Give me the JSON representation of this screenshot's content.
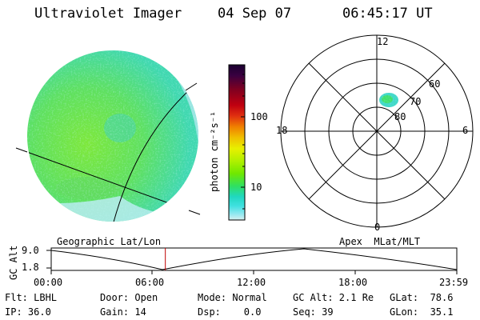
{
  "header": {
    "instrument": "Ultraviolet Imager",
    "date": "04 Sep 07",
    "time": "06:45:17 UT"
  },
  "colorbar": {
    "label": "photon cm⁻²s⁻¹",
    "ticks": [
      "100",
      "10"
    ],
    "colors": [
      "#1a0030",
      "#3a0040",
      "#800020",
      "#c00010",
      "#e03010",
      "#f08000",
      "#f0c000",
      "#e8f000",
      "#b0f000",
      "#70e800",
      "#30e060",
      "#20d8c0",
      "#40e0e0",
      "#90e8f0",
      "#d8f0f0"
    ]
  },
  "geo_panel": {
    "caption": "Geographic Lat/Lon"
  },
  "polar_panel": {
    "caption": "Apex  MLat/MLT",
    "mlt_labels": {
      "top": "12",
      "right": "6",
      "bottom": "0",
      "left": "18"
    },
    "lat_labels": [
      "60",
      "70",
      "80"
    ]
  },
  "altitude_plot": {
    "ylabel": "GC Alt",
    "yticks": [
      "9.0",
      "1.8"
    ],
    "xticks": [
      "00:00",
      "06:00",
      "12:00",
      "18:00",
      "23:59"
    ],
    "marker_time_hours": 6.754
  },
  "status": {
    "flt": "Flt: LBHL",
    "door": "Door: Open",
    "mode": "Mode: Normal",
    "gc_alt": "GC Alt: 2.1 Re",
    "glat": "GLat:  78.6",
    "ip": "IP: 36.0",
    "gain": "Gain: 14",
    "dsp": "Dsp:    0.0",
    "seq": "Seq: 39",
    "glon": "GLon:  35.1"
  }
}
